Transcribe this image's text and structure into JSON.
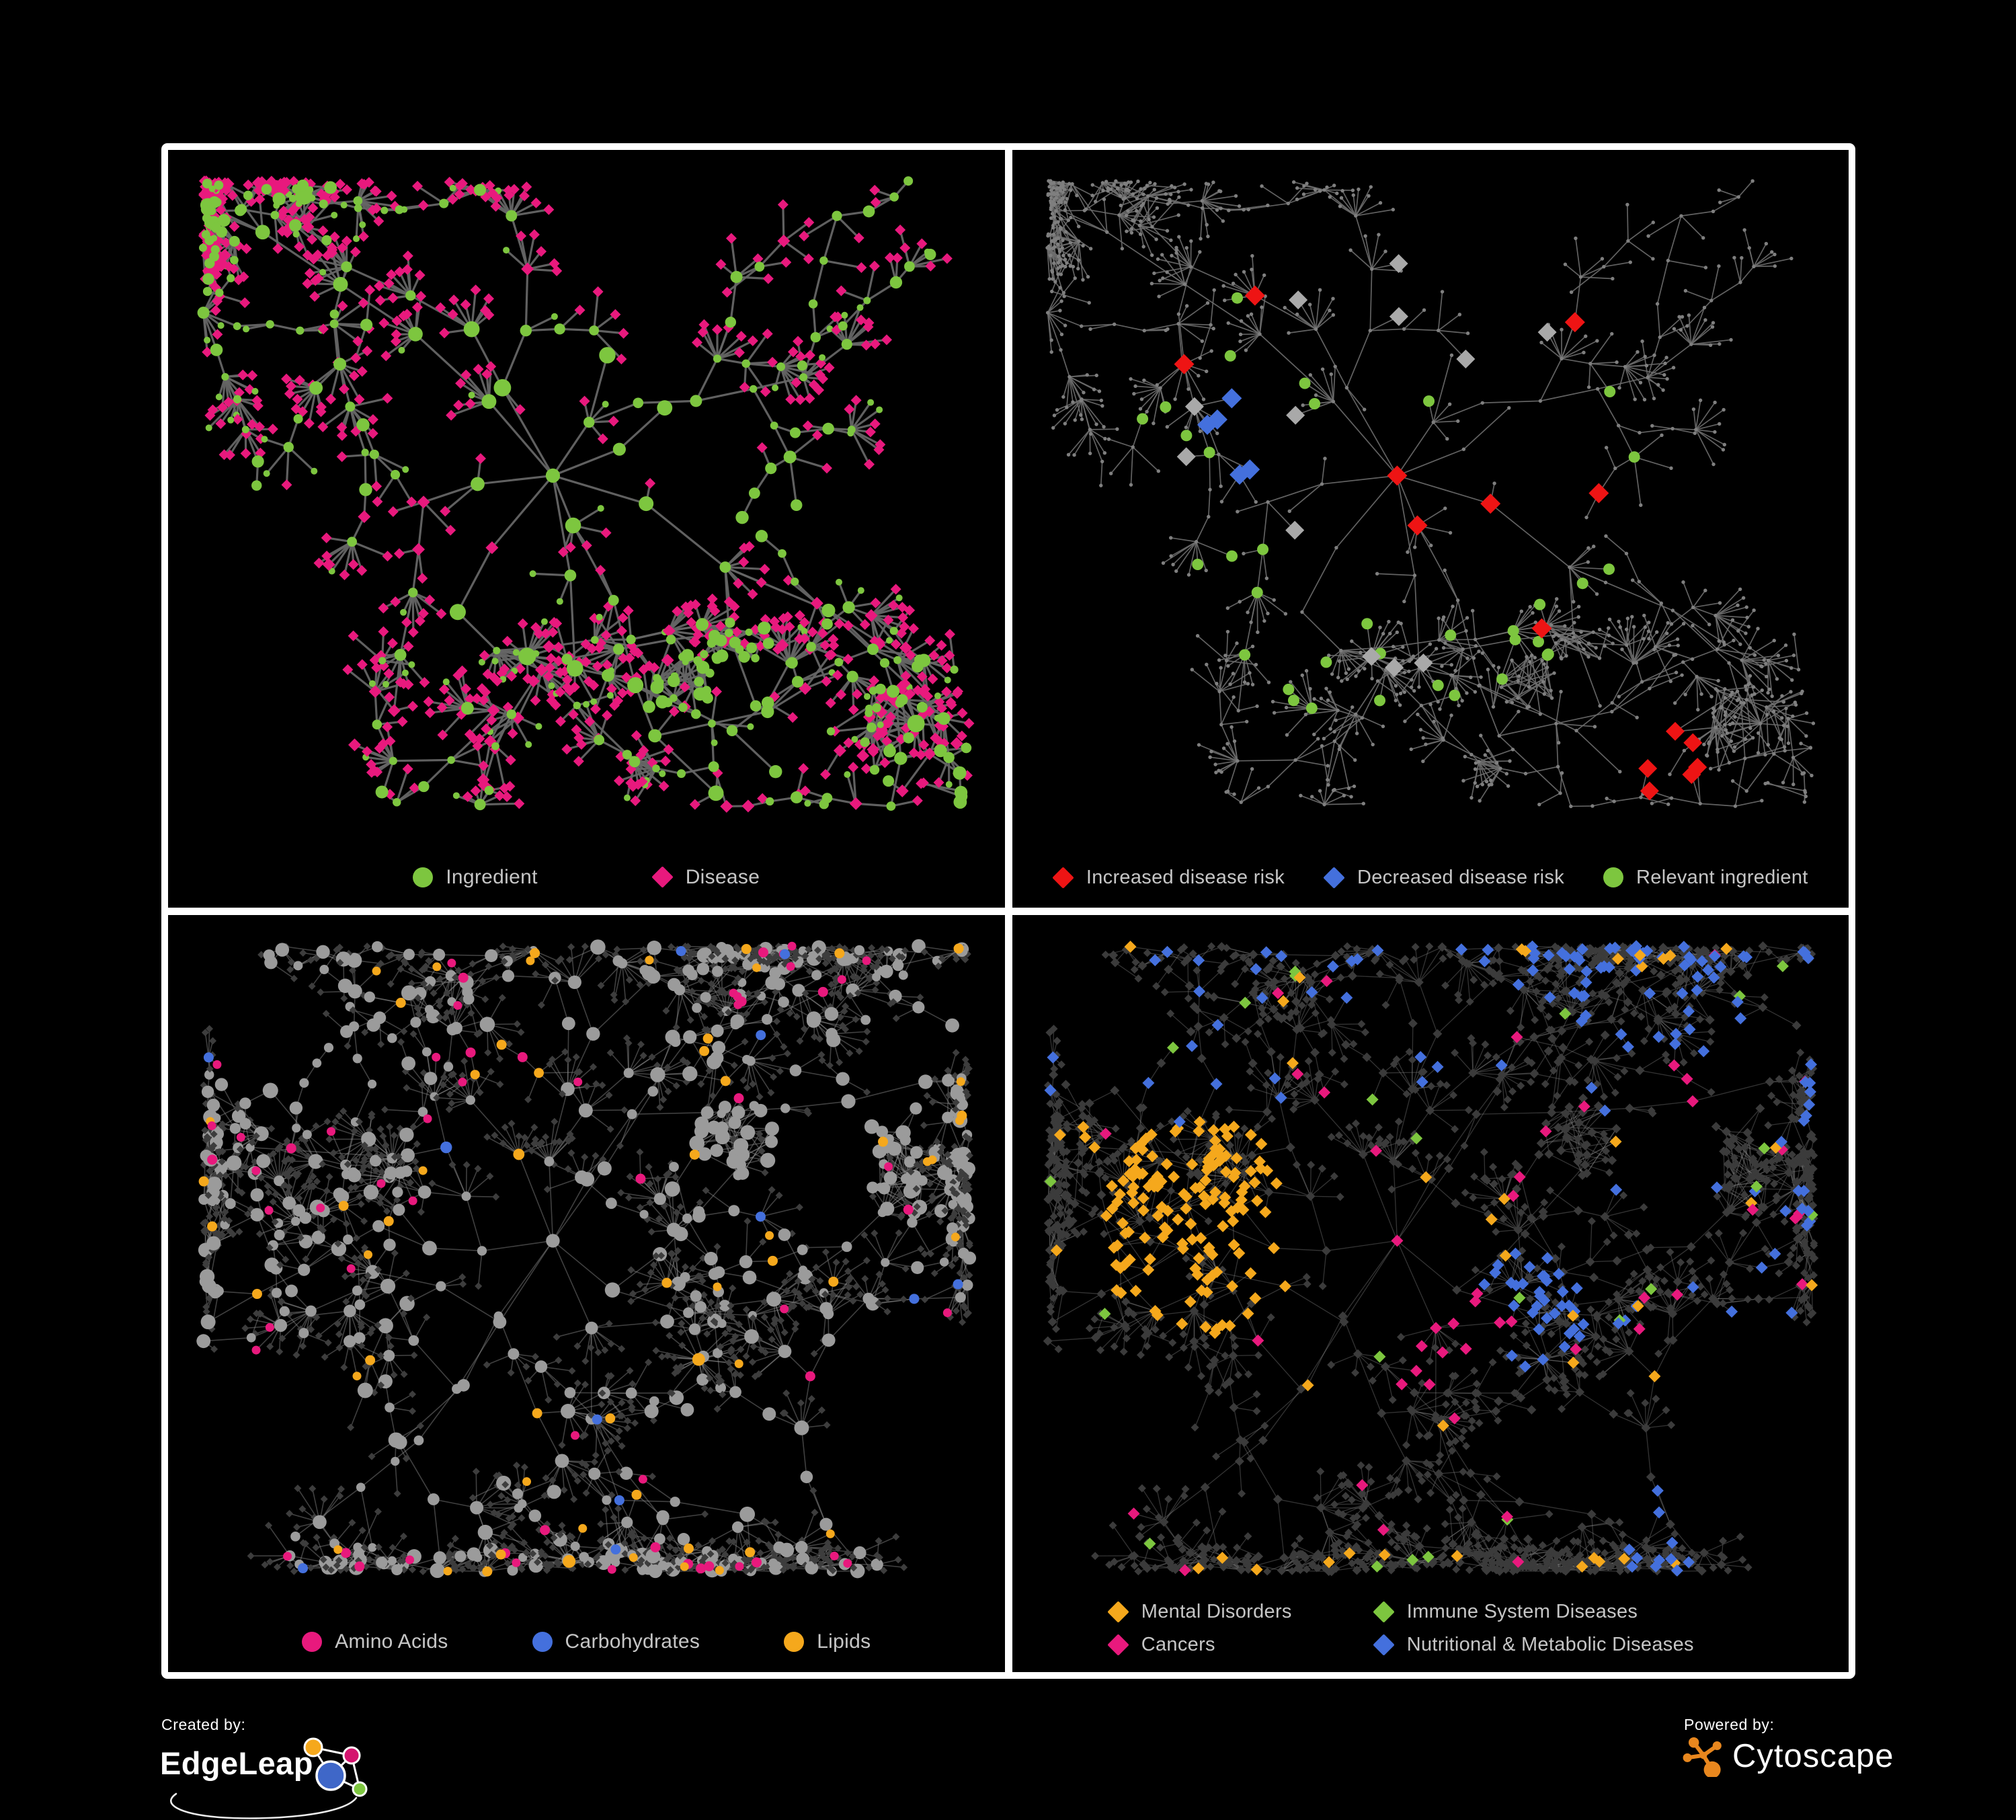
{
  "page": {
    "background": "#000000",
    "frame_color": "#ffffff"
  },
  "panels": [
    {
      "id": "ingredient-disease",
      "legend": [
        {
          "label": "Ingredient",
          "shape": "circle",
          "color": "#7dc63f"
        },
        {
          "label": "Disease",
          "shape": "diamond",
          "color": "#e8197d"
        }
      ],
      "network": {
        "edge_color": "#656565",
        "edge_opacity": 0.95,
        "edge_width": 3.2,
        "ingredient_color": "#7dc63f",
        "disease_color": "#e8197d"
      }
    },
    {
      "id": "disease-risk",
      "legend": [
        {
          "label": "Increased disease risk",
          "shape": "diamond",
          "color": "#ee1414"
        },
        {
          "label": "Decreased disease risk",
          "shape": "diamond",
          "color": "#4470dd"
        },
        {
          "label": "Relevant ingredient",
          "shape": "circle",
          "color": "#7dc63f"
        }
      ],
      "network": {
        "edge_color": "#6d6d6d",
        "edge_opacity": 0.9,
        "edge_width": 1.7,
        "base_node_color": "#7f7f7f",
        "increased_color": "#ee1414",
        "decreased_color": "#4470dd",
        "neutral_color": "#a9a9a9",
        "ingredient_color": "#7dc63f"
      }
    },
    {
      "id": "compound-classes",
      "legend": [
        {
          "label": "Amino Acids",
          "shape": "circle",
          "color": "#e8197d"
        },
        {
          "label": "Carbohydrates",
          "shape": "circle",
          "color": "#4470dd"
        },
        {
          "label": "Lipids",
          "shape": "circle",
          "color": "#f5a81c"
        }
      ],
      "network": {
        "edge_color": "#8f8f8f",
        "edge_opacity": 0.45,
        "edge_width": 1.6,
        "base_circle_color": "#9b9b9b",
        "leaf_diamond_color": "#3d3d3d",
        "amino_color": "#e8197d",
        "carb_color": "#4470dd",
        "lipid_color": "#f5a81c"
      }
    },
    {
      "id": "disease-categories",
      "legend": [
        {
          "label": "Mental Disorders",
          "shape": "diamond",
          "color": "#f5a81c"
        },
        {
          "label": "Immune System Diseases",
          "shape": "diamond",
          "color": "#7dc63f"
        },
        {
          "label": "Cancers",
          "shape": "diamond",
          "color": "#e8197d"
        },
        {
          "label": "Nutritional & Metabolic Diseases",
          "shape": "diamond",
          "color": "#4470dd"
        }
      ],
      "network": {
        "edge_color": "#8a8a8a",
        "edge_opacity": 0.38,
        "edge_width": 1.3,
        "base_diamond_color": "#3b3b3b",
        "mental_color": "#f5a81c",
        "immune_color": "#7dc63f",
        "cancer_color": "#e8197d",
        "nutritional_color": "#4470dd"
      }
    }
  ],
  "footer": {
    "created_by": {
      "label": "Created by:",
      "brand": "EdgeLeap",
      "logo_colors": {
        "orange": "#f5a81c",
        "magenta": "#d4146e",
        "blue": "#3f67c8",
        "green": "#7dc63f",
        "line": "#ffffff"
      }
    },
    "powered_by": {
      "label": "Powered by:",
      "brand": "Cytoscape",
      "brand_color": "#e8871e"
    }
  }
}
